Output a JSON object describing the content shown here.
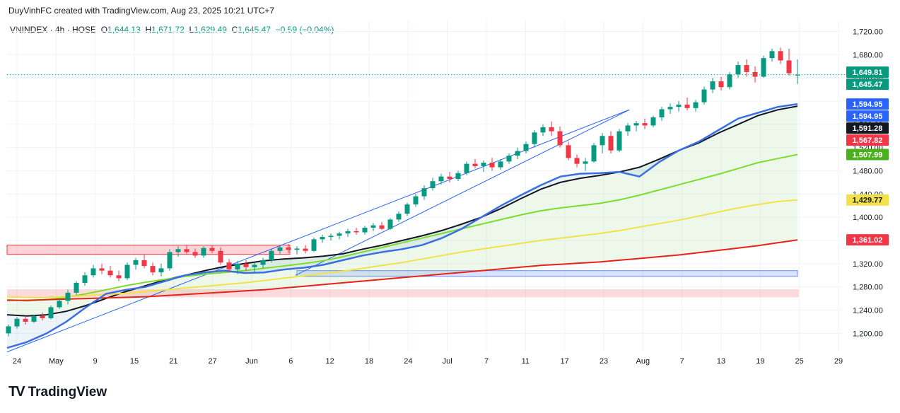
{
  "header": {
    "attribution": "DuyVinhFC created with TradingView.com, Aug 23, 2025 10:21 UTC+7"
  },
  "legend": {
    "symbol": "VNINDEX · 4h · HOSE",
    "o_label": "O",
    "o_value": "1,644.13",
    "h_label": "H",
    "h_value": "1,671.72",
    "l_label": "L",
    "l_value": "1,629.49",
    "c_label": "C",
    "c_value": "1,645.47",
    "change": "−0.59 (−0.04%)"
  },
  "brand": {
    "name": "TradingView",
    "mark": "TV"
  },
  "colors": {
    "up": "#089981",
    "down": "#f23645",
    "ma_black": "#131722",
    "ma_green": "#7ddd2e",
    "ma_yellow": "#f2e24a",
    "ma_red": "#e8221b",
    "support_blue": "#3b6fe0",
    "channel": "#2962ff"
  },
  "chart_data": {
    "type": "candlestick",
    "symbol": "VNINDEX",
    "timeframe": "4h",
    "exchange": "HOSE",
    "x_tick_labels": [
      "24",
      "May",
      "9",
      "15",
      "21",
      "27",
      "Jun",
      "6",
      "12",
      "18",
      "24",
      "Jul",
      "7",
      "11",
      "17",
      "23",
      "Aug",
      "7",
      "13",
      "19",
      "25",
      "29"
    ],
    "y_tick_labels": [
      "1,720.00",
      "1,680.00",
      "1,640.00",
      "1,600.00",
      "1,560.00",
      "1,520.00",
      "1,480.00",
      "1,440.00",
      "1,400.00",
      "1,360.00",
      "1,320.00",
      "1,280.00",
      "1,240.00",
      "1,200.00"
    ],
    "ylim": [
      1170,
      1740
    ],
    "price_tags": [
      {
        "label": "1,649.81",
        "value": 1649.81,
        "color": "#089981"
      },
      {
        "label": "1,645.47",
        "value": 1645.47,
        "color": "#089981"
      },
      {
        "label": "1,594.95",
        "value": 1594.95,
        "color": "#2962ff"
      },
      {
        "label": "1,594.95",
        "value": 1594.95,
        "color": "#2962ff"
      },
      {
        "label": "1,591.28",
        "value": 1591.28,
        "color": "#131722"
      },
      {
        "label": "1,567.82",
        "value": 1567.82,
        "color": "#f23645"
      },
      {
        "label": "1,507.99",
        "value": 1507.99,
        "color": "#4caf1e"
      },
      {
        "label": "1,429.77",
        "value": 1429.77,
        "color": "#f2e24a"
      },
      {
        "label": "1,361.02",
        "value": 1361.02,
        "color": "#f23645"
      }
    ],
    "series": [
      {
        "name": "MA black",
        "values": [
          1232,
          1230,
          1232,
          1238,
          1248,
          1260,
          1272,
          1282,
          1292,
          1300,
          1308,
          1315,
          1320,
          1325,
          1328,
          1330,
          1333,
          1337,
          1345,
          1352,
          1360,
          1368,
          1377,
          1388,
          1400,
          1415,
          1432,
          1448,
          1460,
          1467,
          1472,
          1478,
          1486,
          1500,
          1515,
          1528,
          1545,
          1560,
          1575,
          1585,
          1591.28
        ]
      },
      {
        "name": "MA green",
        "values": [
          1258,
          1256,
          1258,
          1262,
          1268,
          1275,
          1282,
          1288,
          1293,
          1298,
          1302,
          1305,
          1308,
          1312,
          1316,
          1320,
          1325,
          1332,
          1340,
          1348,
          1356,
          1364,
          1372,
          1380,
          1388,
          1396,
          1404,
          1411,
          1416,
          1420,
          1424,
          1430,
          1438,
          1447,
          1456,
          1465,
          1474,
          1484,
          1494,
          1501,
          1507.99
        ]
      },
      {
        "name": "MA yellow",
        "values": [
          1263,
          1262,
          1262,
          1263,
          1265,
          1267,
          1269,
          1272,
          1275,
          1278,
          1281,
          1284,
          1287,
          1291,
          1295,
          1299,
          1303,
          1307,
          1312,
          1317,
          1322,
          1328,
          1334,
          1340,
          1345,
          1350,
          1355,
          1360,
          1364,
          1368,
          1372,
          1377,
          1383,
          1389,
          1395,
          1402,
          1409,
          1416,
          1422,
          1427,
          1429.77
        ]
      },
      {
        "name": "MA red",
        "values": [
          1257,
          1257,
          1258,
          1259,
          1260,
          1261,
          1262,
          1263,
          1265,
          1267,
          1269,
          1271,
          1273,
          1275,
          1278,
          1281,
          1284,
          1287,
          1290,
          1293,
          1296,
          1299,
          1302,
          1305,
          1308,
          1311,
          1314,
          1317,
          1319,
          1321,
          1323,
          1326,
          1329,
          1332,
          1335,
          1339,
          1343,
          1347,
          1351,
          1356,
          1361.02
        ]
      }
    ],
    "support_line": [
      1175,
      1185,
      1200,
      1220,
      1245,
      1268,
      1275,
      1280,
      1290,
      1300,
      1305,
      1308,
      1304,
      1305,
      1310,
      1313,
      1318,
      1326,
      1334,
      1340,
      1345,
      1352,
      1364,
      1380,
      1400,
      1420,
      1438,
      1455,
      1470,
      1475,
      1476,
      1478,
      1470,
      1495,
      1515,
      1530,
      1550,
      1570,
      1580,
      1590,
      1594.95
    ],
    "candles": [
      {
        "o": 1200,
        "h": 1215,
        "l": 1195,
        "c": 1212
      },
      {
        "o": 1212,
        "h": 1228,
        "l": 1208,
        "c": 1225
      },
      {
        "o": 1225,
        "h": 1230,
        "l": 1215,
        "c": 1220
      },
      {
        "o": 1220,
        "h": 1232,
        "l": 1218,
        "c": 1230
      },
      {
        "o": 1230,
        "h": 1236,
        "l": 1222,
        "c": 1226
      },
      {
        "o": 1226,
        "h": 1248,
        "l": 1224,
        "c": 1245
      },
      {
        "o": 1245,
        "h": 1260,
        "l": 1242,
        "c": 1256
      },
      {
        "o": 1256,
        "h": 1275,
        "l": 1250,
        "c": 1270
      },
      {
        "o": 1270,
        "h": 1290,
        "l": 1266,
        "c": 1287
      },
      {
        "o": 1287,
        "h": 1305,
        "l": 1282,
        "c": 1300
      },
      {
        "o": 1300,
        "h": 1318,
        "l": 1296,
        "c": 1312
      },
      {
        "o": 1312,
        "h": 1320,
        "l": 1302,
        "c": 1308
      },
      {
        "o": 1308,
        "h": 1316,
        "l": 1296,
        "c": 1300
      },
      {
        "o": 1300,
        "h": 1308,
        "l": 1290,
        "c": 1295
      },
      {
        "o": 1295,
        "h": 1322,
        "l": 1292,
        "c": 1318
      },
      {
        "o": 1318,
        "h": 1330,
        "l": 1310,
        "c": 1326
      },
      {
        "o": 1326,
        "h": 1335,
        "l": 1312,
        "c": 1316
      },
      {
        "o": 1316,
        "h": 1322,
        "l": 1300,
        "c": 1305
      },
      {
        "o": 1305,
        "h": 1320,
        "l": 1298,
        "c": 1312
      },
      {
        "o": 1312,
        "h": 1345,
        "l": 1308,
        "c": 1340
      },
      {
        "o": 1340,
        "h": 1350,
        "l": 1332,
        "c": 1345
      },
      {
        "o": 1345,
        "h": 1352,
        "l": 1336,
        "c": 1340
      },
      {
        "o": 1340,
        "h": 1346,
        "l": 1330,
        "c": 1334
      },
      {
        "o": 1334,
        "h": 1350,
        "l": 1330,
        "c": 1347
      },
      {
        "o": 1347,
        "h": 1352,
        "l": 1338,
        "c": 1342
      },
      {
        "o": 1342,
        "h": 1348,
        "l": 1318,
        "c": 1322
      },
      {
        "o": 1322,
        "h": 1328,
        "l": 1305,
        "c": 1310
      },
      {
        "o": 1310,
        "h": 1325,
        "l": 1302,
        "c": 1320
      },
      {
        "o": 1320,
        "h": 1326,
        "l": 1308,
        "c": 1314
      },
      {
        "o": 1314,
        "h": 1322,
        "l": 1306,
        "c": 1318
      },
      {
        "o": 1318,
        "h": 1330,
        "l": 1312,
        "c": 1326
      },
      {
        "o": 1326,
        "h": 1345,
        "l": 1322,
        "c": 1342
      },
      {
        "o": 1342,
        "h": 1352,
        "l": 1336,
        "c": 1348
      },
      {
        "o": 1348,
        "h": 1354,
        "l": 1338,
        "c": 1344
      },
      {
        "o": 1344,
        "h": 1350,
        "l": 1336,
        "c": 1346
      },
      {
        "o": 1346,
        "h": 1352,
        "l": 1338,
        "c": 1342
      },
      {
        "o": 1342,
        "h": 1365,
        "l": 1340,
        "c": 1362
      },
      {
        "o": 1362,
        "h": 1370,
        "l": 1356,
        "c": 1366
      },
      {
        "o": 1366,
        "h": 1372,
        "l": 1360,
        "c": 1368
      },
      {
        "o": 1368,
        "h": 1375,
        "l": 1362,
        "c": 1372
      },
      {
        "o": 1372,
        "h": 1380,
        "l": 1366,
        "c": 1376
      },
      {
        "o": 1376,
        "h": 1382,
        "l": 1370,
        "c": 1374
      },
      {
        "o": 1374,
        "h": 1385,
        "l": 1370,
        "c": 1382
      },
      {
        "o": 1382,
        "h": 1390,
        "l": 1376,
        "c": 1386
      },
      {
        "o": 1386,
        "h": 1392,
        "l": 1378,
        "c": 1380
      },
      {
        "o": 1380,
        "h": 1398,
        "l": 1378,
        "c": 1396
      },
      {
        "o": 1396,
        "h": 1410,
        "l": 1392,
        "c": 1406
      },
      {
        "o": 1406,
        "h": 1425,
        "l": 1402,
        "c": 1422
      },
      {
        "o": 1422,
        "h": 1440,
        "l": 1418,
        "c": 1436
      },
      {
        "o": 1436,
        "h": 1455,
        "l": 1430,
        "c": 1450
      },
      {
        "o": 1450,
        "h": 1468,
        "l": 1446,
        "c": 1462
      },
      {
        "o": 1462,
        "h": 1475,
        "l": 1456,
        "c": 1470
      },
      {
        "o": 1470,
        "h": 1478,
        "l": 1460,
        "c": 1466
      },
      {
        "o": 1466,
        "h": 1480,
        "l": 1462,
        "c": 1476
      },
      {
        "o": 1476,
        "h": 1496,
        "l": 1472,
        "c": 1492
      },
      {
        "o": 1492,
        "h": 1500,
        "l": 1484,
        "c": 1488
      },
      {
        "o": 1488,
        "h": 1498,
        "l": 1478,
        "c": 1494
      },
      {
        "o": 1494,
        "h": 1502,
        "l": 1480,
        "c": 1486
      },
      {
        "o": 1486,
        "h": 1500,
        "l": 1482,
        "c": 1496
      },
      {
        "o": 1496,
        "h": 1510,
        "l": 1492,
        "c": 1506
      },
      {
        "o": 1506,
        "h": 1520,
        "l": 1500,
        "c": 1514
      },
      {
        "o": 1514,
        "h": 1530,
        "l": 1510,
        "c": 1526
      },
      {
        "o": 1526,
        "h": 1550,
        "l": 1520,
        "c": 1546
      },
      {
        "o": 1546,
        "h": 1560,
        "l": 1540,
        "c": 1555
      },
      {
        "o": 1555,
        "h": 1565,
        "l": 1540,
        "c": 1548
      },
      {
        "o": 1548,
        "h": 1556,
        "l": 1520,
        "c": 1524
      },
      {
        "o": 1524,
        "h": 1530,
        "l": 1498,
        "c": 1502
      },
      {
        "o": 1502,
        "h": 1508,
        "l": 1486,
        "c": 1492
      },
      {
        "o": 1492,
        "h": 1502,
        "l": 1480,
        "c": 1496
      },
      {
        "o": 1496,
        "h": 1528,
        "l": 1494,
        "c": 1524
      },
      {
        "o": 1524,
        "h": 1545,
        "l": 1510,
        "c": 1540
      },
      {
        "o": 1540,
        "h": 1548,
        "l": 1510,
        "c": 1515
      },
      {
        "o": 1515,
        "h": 1552,
        "l": 1512,
        "c": 1548
      },
      {
        "o": 1548,
        "h": 1562,
        "l": 1540,
        "c": 1558
      },
      {
        "o": 1558,
        "h": 1566,
        "l": 1548,
        "c": 1562
      },
      {
        "o": 1562,
        "h": 1570,
        "l": 1552,
        "c": 1558
      },
      {
        "o": 1558,
        "h": 1575,
        "l": 1555,
        "c": 1572
      },
      {
        "o": 1572,
        "h": 1590,
        "l": 1566,
        "c": 1586
      },
      {
        "o": 1586,
        "h": 1596,
        "l": 1578,
        "c": 1590
      },
      {
        "o": 1590,
        "h": 1600,
        "l": 1582,
        "c": 1594
      },
      {
        "o": 1594,
        "h": 1606,
        "l": 1584,
        "c": 1588
      },
      {
        "o": 1588,
        "h": 1602,
        "l": 1582,
        "c": 1598
      },
      {
        "o": 1598,
        "h": 1625,
        "l": 1594,
        "c": 1620
      },
      {
        "o": 1620,
        "h": 1640,
        "l": 1614,
        "c": 1634
      },
      {
        "o": 1634,
        "h": 1642,
        "l": 1618,
        "c": 1624
      },
      {
        "o": 1624,
        "h": 1650,
        "l": 1620,
        "c": 1646
      },
      {
        "o": 1646,
        "h": 1668,
        "l": 1640,
        "c": 1662
      },
      {
        "o": 1662,
        "h": 1672,
        "l": 1642,
        "c": 1650
      },
      {
        "o": 1650,
        "h": 1660,
        "l": 1632,
        "c": 1642
      },
      {
        "o": 1642,
        "h": 1678,
        "l": 1640,
        "c": 1674
      },
      {
        "o": 1674,
        "h": 1690,
        "l": 1668,
        "c": 1686
      },
      {
        "o": 1686,
        "h": 1692,
        "l": 1664,
        "c": 1670
      },
      {
        "o": 1670,
        "h": 1690,
        "l": 1644,
        "c": 1648
      },
      {
        "o": 1644,
        "h": 1671.72,
        "l": 1629.49,
        "c": 1645.47
      }
    ]
  }
}
